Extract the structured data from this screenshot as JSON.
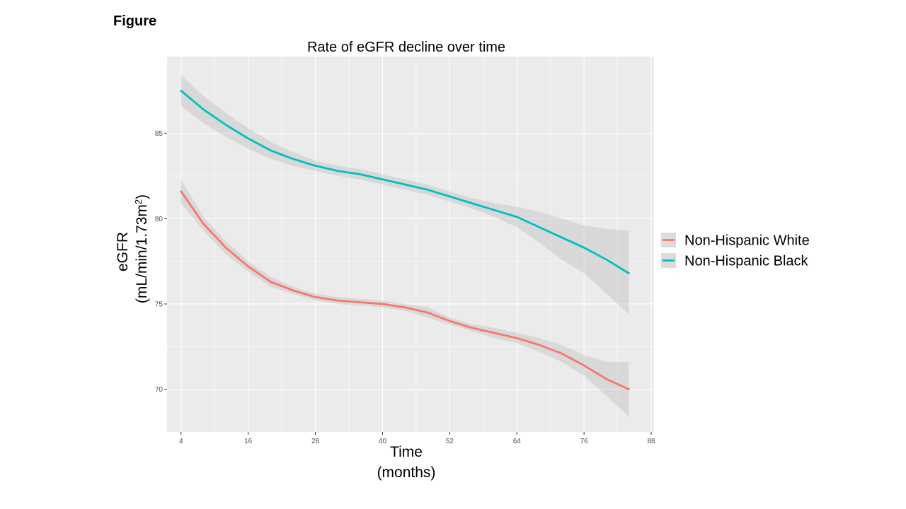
{
  "figure_label": "Figure",
  "colors": {
    "panel_bg": "#ebebeb",
    "grid_major": "#ffffff",
    "ribbon": "#b4b4b4",
    "white_series": "#f8766d",
    "black_series": "#00bfc4"
  },
  "chart_data": {
    "type": "line",
    "title": "Rate of eGFR decline over time",
    "xlabel_line1": "Time",
    "xlabel_line2": "(months)",
    "ylabel_line1": "eGFR",
    "ylabel_line2_pre": "(mL/min/1.73m",
    "ylabel_line2_sup": "2",
    "ylabel_line2_post": ")",
    "xlim": [
      1.5,
      88.5
    ],
    "ylim": [
      67.5,
      89.5
    ],
    "x_ticks": [
      4,
      16,
      28,
      40,
      52,
      64,
      76,
      88
    ],
    "y_ticks": [
      70,
      75,
      80,
      85
    ],
    "grid": true,
    "legend_position": "right",
    "series": [
      {
        "name": "Non-Hispanic White",
        "color": "#f8766d",
        "x": [
          4,
          8,
          12,
          16,
          20,
          24,
          28,
          32,
          36,
          40,
          44,
          48,
          52,
          56,
          60,
          64,
          68,
          72,
          76,
          80,
          84
        ],
        "y": [
          81.6,
          79.7,
          78.3,
          77.2,
          76.3,
          75.8,
          75.4,
          75.2,
          75.1,
          75.0,
          74.8,
          74.5,
          74.0,
          73.6,
          73.3,
          73.0,
          72.6,
          72.1,
          71.4,
          70.6,
          70.0
        ],
        "lower": [
          80.9,
          79.3,
          77.9,
          76.9,
          76.0,
          75.6,
          75.2,
          75.0,
          74.9,
          74.8,
          74.6,
          74.2,
          73.8,
          73.4,
          73.0,
          72.7,
          72.2,
          71.6,
          70.8,
          69.6,
          68.4
        ],
        "upper": [
          82.3,
          80.1,
          78.7,
          77.5,
          76.6,
          76.0,
          75.6,
          75.4,
          75.3,
          75.2,
          75.0,
          74.8,
          74.2,
          73.8,
          73.6,
          73.3,
          73.0,
          72.6,
          72.0,
          71.6,
          71.6
        ]
      },
      {
        "name": "Non-Hispanic Black",
        "color": "#00bfc4",
        "x": [
          4,
          8,
          12,
          16,
          20,
          24,
          28,
          32,
          36,
          40,
          44,
          48,
          52,
          56,
          60,
          64,
          68,
          72,
          76,
          80,
          84
        ],
        "y": [
          87.5,
          86.4,
          85.5,
          84.7,
          84.0,
          83.5,
          83.1,
          82.8,
          82.6,
          82.3,
          82.0,
          81.7,
          81.3,
          80.9,
          80.5,
          80.1,
          79.5,
          78.9,
          78.3,
          77.6,
          76.8
        ],
        "lower": [
          86.6,
          85.6,
          84.8,
          84.1,
          83.5,
          83.1,
          82.8,
          82.5,
          82.3,
          82.0,
          81.7,
          81.4,
          81.0,
          80.6,
          80.1,
          79.5,
          78.6,
          77.6,
          76.8,
          75.6,
          74.4
        ],
        "upper": [
          88.4,
          87.2,
          86.2,
          85.3,
          84.5,
          83.9,
          83.4,
          83.1,
          82.9,
          82.6,
          82.3,
          82.0,
          81.6,
          81.2,
          80.9,
          80.7,
          80.4,
          80.0,
          79.6,
          79.4,
          79.3
        ]
      }
    ]
  }
}
